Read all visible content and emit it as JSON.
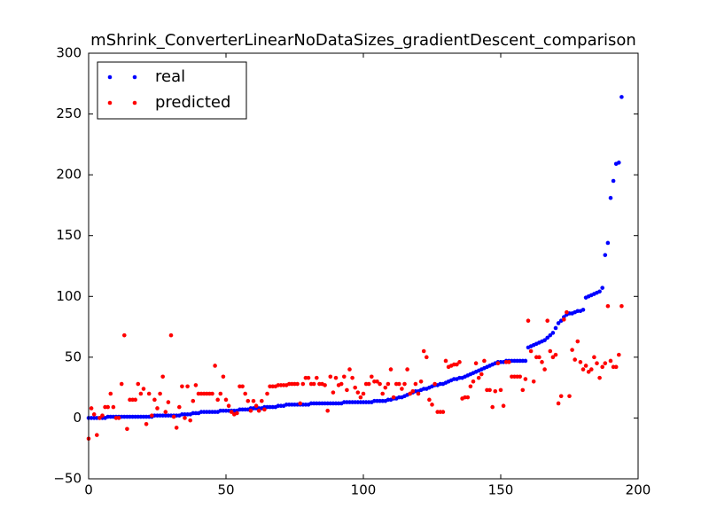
{
  "chart_data": {
    "type": "scatter",
    "title": "mShrink_ConverterLinearNoDataSizes_gradientDescent_comparison",
    "x": [
      0,
      1,
      2,
      3,
      4,
      5,
      6,
      7,
      8,
      9,
      10,
      11,
      12,
      13,
      14,
      15,
      16,
      17,
      18,
      19,
      20,
      21,
      22,
      23,
      24,
      25,
      26,
      27,
      28,
      29,
      30,
      31,
      32,
      33,
      34,
      35,
      36,
      37,
      38,
      39,
      40,
      41,
      42,
      43,
      44,
      45,
      46,
      47,
      48,
      49,
      50,
      51,
      52,
      53,
      54,
      55,
      56,
      57,
      58,
      59,
      60,
      61,
      62,
      63,
      64,
      65,
      66,
      67,
      68,
      69,
      70,
      71,
      72,
      73,
      74,
      75,
      76,
      77,
      78,
      79,
      80,
      81,
      82,
      83,
      84,
      85,
      86,
      87,
      88,
      89,
      90,
      91,
      92,
      93,
      94,
      95,
      96,
      97,
      98,
      99,
      100,
      101,
      102,
      103,
      104,
      105,
      106,
      107,
      108,
      109,
      110,
      111,
      112,
      113,
      114,
      115,
      116,
      117,
      118,
      119,
      120,
      121,
      122,
      123,
      124,
      125,
      126,
      127,
      128,
      129,
      130,
      131,
      132,
      133,
      134,
      135,
      136,
      137,
      138,
      139,
      140,
      141,
      142,
      143,
      144,
      145,
      146,
      147,
      148,
      149,
      150,
      151,
      152,
      153,
      154,
      155,
      156,
      157,
      158,
      159,
      160,
      161,
      162,
      163,
      164,
      165,
      166,
      167,
      168,
      169,
      170,
      171,
      172,
      173,
      174,
      175,
      176,
      177,
      178,
      179,
      180,
      181,
      182,
      183,
      184,
      185,
      186,
      187,
      188,
      189,
      190,
      191,
      192,
      193,
      194
    ],
    "series": [
      {
        "name": "real",
        "color": "#0000ff",
        "values": [
          0,
          0,
          0,
          0,
          0,
          0,
          0,
          1,
          1,
          1,
          1,
          1,
          1,
          1,
          1,
          1,
          1,
          1,
          1,
          1,
          1,
          1,
          1,
          1,
          2,
          2,
          2,
          2,
          2,
          2,
          2,
          2,
          2,
          2,
          3,
          3,
          3,
          3,
          4,
          4,
          4,
          5,
          5,
          5,
          5,
          5,
          5,
          5,
          6,
          6,
          6,
          6,
          6,
          6,
          6,
          7,
          7,
          7,
          7,
          8,
          8,
          8,
          8,
          8,
          9,
          9,
          9,
          9,
          9,
          10,
          10,
          10,
          11,
          11,
          11,
          11,
          11,
          11,
          11,
          11,
          11,
          12,
          12,
          12,
          12,
          12,
          12,
          12,
          12,
          12,
          12,
          12,
          12,
          13,
          13,
          13,
          13,
          13,
          13,
          13,
          13,
          13,
          13,
          13,
          14,
          14,
          14,
          14,
          14,
          15,
          15,
          16,
          16,
          17,
          17,
          18,
          19,
          20,
          21,
          22,
          22,
          23,
          24,
          24,
          25,
          26,
          27,
          27,
          28,
          28,
          29,
          30,
          31,
          32,
          32,
          33,
          33,
          34,
          35,
          36,
          37,
          38,
          39,
          40,
          41,
          42,
          43,
          44,
          45,
          46,
          46,
          46,
          47,
          47,
          47,
          47,
          47,
          47,
          47,
          47,
          58,
          59,
          60,
          61,
          62,
          63,
          64,
          66,
          68,
          70,
          74,
          78,
          80,
          83,
          85,
          86,
          86,
          87,
          88,
          88,
          89,
          99,
          100,
          101,
          102,
          103,
          104,
          107,
          134,
          144,
          181,
          195,
          209,
          210,
          264
        ]
      },
      {
        "name": "predicted",
        "color": "#ff0000",
        "values": [
          -17,
          8,
          3,
          -14,
          0,
          2,
          9,
          9,
          20,
          9,
          0,
          0,
          28,
          68,
          -9,
          15,
          15,
          15,
          28,
          20,
          24,
          -5,
          20,
          2,
          15,
          8,
          20,
          34,
          5,
          13,
          68,
          1,
          -8,
          9,
          26,
          0,
          26,
          -2,
          14,
          27,
          20,
          20,
          20,
          20,
          20,
          20,
          43,
          15,
          20,
          34,
          15,
          10,
          5,
          3,
          4,
          26,
          26,
          20,
          14,
          6,
          14,
          10,
          6,
          14,
          7,
          20,
          26,
          26,
          26,
          27,
          27,
          27,
          27,
          28,
          28,
          28,
          28,
          12,
          28,
          33,
          33,
          28,
          28,
          33,
          28,
          28,
          27,
          6,
          34,
          21,
          33,
          27,
          28,
          34,
          23,
          40,
          33,
          25,
          21,
          17,
          20,
          28,
          28,
          34,
          30,
          30,
          28,
          20,
          25,
          28,
          40,
          17,
          28,
          28,
          24,
          28,
          40,
          20,
          22,
          28,
          20,
          30,
          55,
          50,
          15,
          11,
          28,
          5,
          5,
          5,
          47,
          42,
          43,
          44,
          44,
          46,
          16,
          17,
          17,
          26,
          30,
          45,
          33,
          36,
          47,
          23,
          23,
          9,
          22,
          45,
          23,
          10,
          46,
          46,
          34,
          34,
          34,
          34,
          23,
          32,
          80,
          55,
          30,
          50,
          50,
          46,
          40,
          80,
          55,
          50,
          52,
          12,
          18,
          81,
          87,
          18,
          56,
          48,
          63,
          46,
          40,
          43,
          38,
          40,
          50,
          45,
          33,
          42,
          45,
          92,
          47,
          42,
          42,
          52,
          92
        ]
      }
    ],
    "xlim": [
      0,
      200
    ],
    "xticks": [
      0,
      50,
      100,
      150,
      200
    ],
    "ylim": [
      -50,
      300
    ],
    "yticks": [
      {
        "value": -50,
        "label": "−50"
      },
      0,
      50,
      100,
      150,
      200,
      250,
      300
    ],
    "legend": "upper left"
  }
}
